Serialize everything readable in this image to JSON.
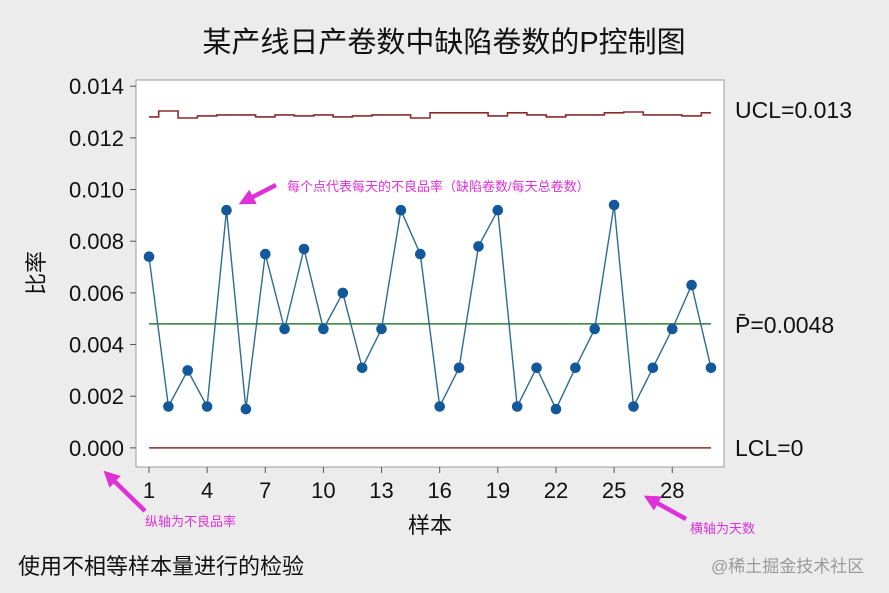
{
  "colors": {
    "page_background": "#ECECEC",
    "plot_background": "#FFFFFF",
    "series_line": "#2C6C93",
    "series_point": "#12589A",
    "limit_line": "#8B2B2B",
    "center_line": "#2E7B3C",
    "annotation": "#DE32D8",
    "watermark": "#9A9A9A"
  },
  "footnote": "使用不相等样本量进行的检验",
  "watermark": "@稀土掘金技术社区",
  "chart_data": {
    "type": "line",
    "title": "某产线日产卷数中缺陷卷数的P控制图",
    "xlabel": "样本",
    "ylabel": "比率",
    "x": [
      1,
      2,
      3,
      4,
      5,
      6,
      7,
      8,
      9,
      10,
      11,
      12,
      13,
      14,
      15,
      16,
      17,
      18,
      19,
      20,
      21,
      22,
      23,
      24,
      25,
      26,
      27,
      28,
      29,
      30
    ],
    "xticks": [
      1,
      4,
      7,
      10,
      13,
      16,
      19,
      22,
      25,
      28
    ],
    "yticks": [
      0,
      0.002,
      0.004,
      0.006,
      0.008,
      0.01,
      0.012,
      0.014
    ],
    "ytick_labels": [
      "0.000",
      "0.002",
      "0.004",
      "0.006",
      "0.008",
      "0.010",
      "0.012",
      "0.014"
    ],
    "xlim": [
      0.33,
      30.67
    ],
    "ylim": [
      -0.00074,
      0.01424
    ],
    "grid": false,
    "series": [
      {
        "values": [
          0.0074,
          0.0016,
          0.003,
          0.0016,
          0.0092,
          0.0015,
          0.0075,
          0.0046,
          0.0077,
          0.0046,
          0.006,
          0.0031,
          0.0046,
          0.0092,
          0.0075,
          0.0016,
          0.0031,
          0.0078,
          0.0092,
          0.0016,
          0.0031,
          0.0015,
          0.0031,
          0.0046,
          0.0094,
          0.0016,
          0.0031,
          0.0046,
          0.0063,
          0.0031
        ]
      }
    ],
    "control_limits": {
      "ucl": [
        0.01281,
        0.01304,
        0.01277,
        0.01285,
        0.01289,
        0.01289,
        0.01281,
        0.01289,
        0.01285,
        0.01289,
        0.01281,
        0.01285,
        0.01289,
        0.01289,
        0.01277,
        0.01297,
        0.01297,
        0.01297,
        0.01285,
        0.01297,
        0.01289,
        0.01281,
        0.01289,
        0.01289,
        0.01297,
        0.013,
        0.01289,
        0.01289,
        0.01285,
        0.01297
      ],
      "center": 0.0048,
      "lcl": 0,
      "ucl_label": "UCL=0.013",
      "center_label": "P̄=0.0048",
      "lcl_label": "LCL=0"
    },
    "annotations": {
      "point_note": "每个点代表每天的不良品率（缺陷卷数/每天总卷数）",
      "y_axis_note": "纵轴为不良品率",
      "x_axis_note": "横轴为天数"
    }
  }
}
